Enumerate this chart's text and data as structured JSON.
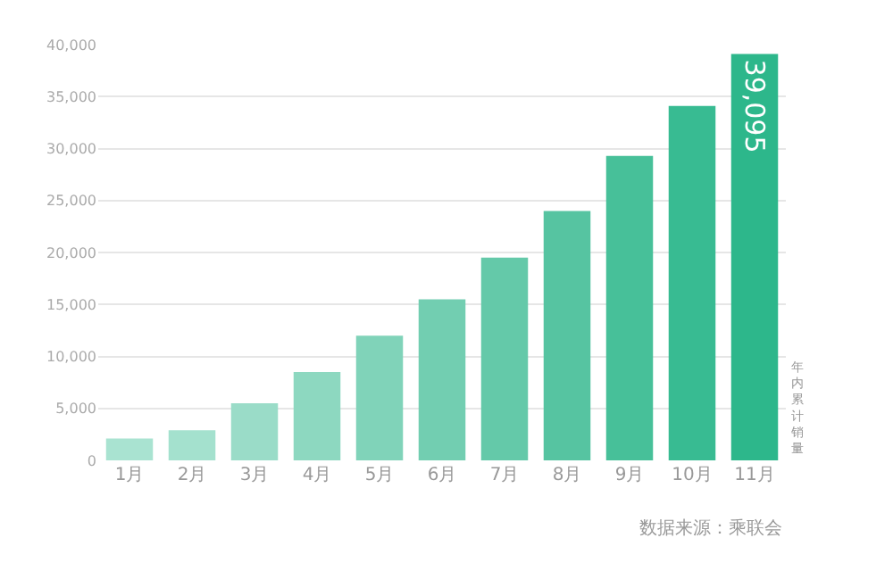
{
  "chart_data": {
    "type": "bar",
    "categories": [
      "1月",
      "2月",
      "3月",
      "4月",
      "5月",
      "6月",
      "7月",
      "8月",
      "9月",
      "10月",
      "11月"
    ],
    "values": [
      2100,
      2900,
      5500,
      8500,
      12000,
      15500,
      19500,
      24000,
      29300,
      34100,
      39095
    ],
    "colors": [
      "#a9e3d1",
      "#a4e1ce",
      "#9adcc8",
      "#8dd8c0",
      "#80d3b9",
      "#72ceb1",
      "#64c9a9",
      "#56c4a1",
      "#47c099",
      "#38bb92",
      "#2db78b"
    ],
    "value_labels": [
      null,
      null,
      null,
      null,
      null,
      null,
      null,
      null,
      null,
      null,
      "39,095"
    ],
    "ylabel": "年内累计销量",
    "ylim": [
      0,
      40000
    ],
    "yticks": [
      {
        "value": 0,
        "label": "0"
      },
      {
        "value": 5000,
        "label": "5,000"
      },
      {
        "value": 10000,
        "label": "10,000"
      },
      {
        "value": 15000,
        "label": "15,000"
      },
      {
        "value": 20000,
        "label": "20,000"
      },
      {
        "value": 25000,
        "label": "25,000"
      },
      {
        "value": 30000,
        "label": "30,000"
      },
      {
        "value": 35000,
        "label": "35,000"
      },
      {
        "value": 40000,
        "label": "40,000"
      }
    ],
    "grid": "y",
    "annotations": [
      "数据来源：乘联会"
    ]
  }
}
